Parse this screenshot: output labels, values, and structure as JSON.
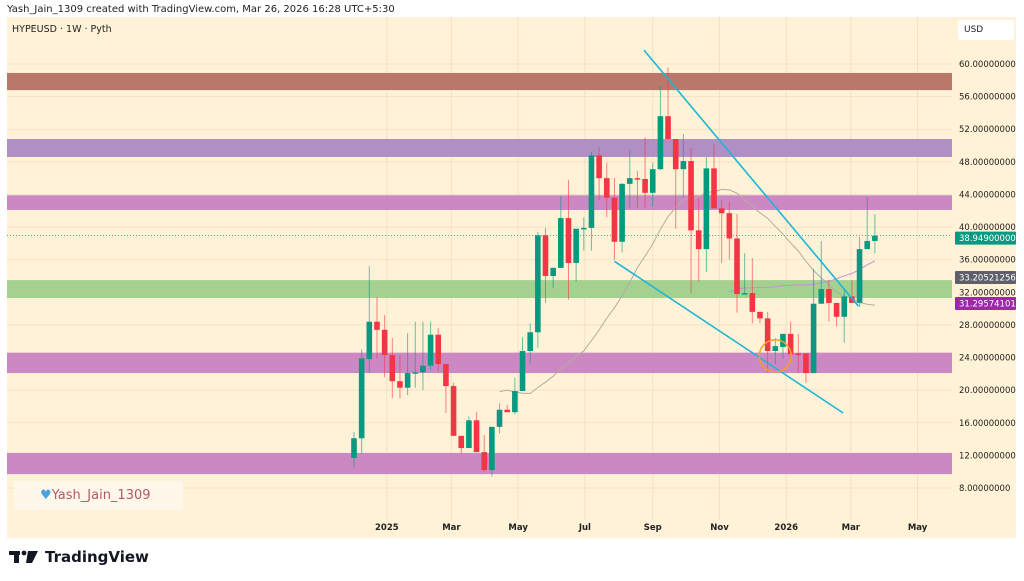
{
  "header": {
    "attribution": "Yash_Jain_1309 created with TradingView.com, Mar 26, 2026 16:28 UTC+5:30"
  },
  "symbol_line": "HYPEUSD · 1W · Pyth",
  "currency": "USD",
  "watermark": "Yash_Jain_1309",
  "brand": "TradingView",
  "colors": {
    "bg": "#fff2d6",
    "up": "#089981",
    "down": "#f23645",
    "trendline": "#1fb5d8",
    "sma_fast": "#b8aba0",
    "sma_slow": "#c98fd6",
    "circle": "#f5a11f"
  },
  "chart_data": {
    "type": "candlestick",
    "timeframe": "1W",
    "ylim": [
      7,
      62
    ],
    "y_ticks": [
      8,
      12,
      16,
      20,
      24,
      28,
      32,
      36,
      40,
      44,
      48,
      52,
      56,
      60
    ],
    "y_tick_labels": [
      "8.00000000",
      "12.00000000",
      "16.00000000",
      "20.00000000",
      "24.00000000",
      "28.00000000",
      "32.00000000",
      "36.00000000",
      "40.00000000",
      "44.00000000",
      "48.00000000",
      "52.00000000",
      "56.00000000",
      "60.00000000"
    ],
    "x_ticks": [
      {
        "label": "2025",
        "date": "2025-01-01"
      },
      {
        "label": "Mar",
        "date": "2025-03-01"
      },
      {
        "label": "May",
        "date": "2025-05-01"
      },
      {
        "label": "Jul",
        "date": "2025-07-01"
      },
      {
        "label": "Sep",
        "date": "2025-09-01"
      },
      {
        "label": "Nov",
        "date": "2025-11-01"
      },
      {
        "label": "2026",
        "date": "2026-01-01"
      },
      {
        "label": "Mar",
        "date": "2026-03-01"
      },
      {
        "label": "May",
        "date": "2026-05-01"
      }
    ],
    "x_range": [
      "2024-08-05",
      "2026-06-15"
    ],
    "candles_columns": [
      "date",
      "open",
      "high",
      "low",
      "close"
    ],
    "candles": [
      [
        "2024-12-02",
        11.7,
        14.9,
        10.5,
        14.1
      ],
      [
        "2024-12-09",
        14.1,
        25.0,
        12.2,
        23.9
      ],
      [
        "2024-12-16",
        23.8,
        35.2,
        22.1,
        28.4
      ],
      [
        "2024-12-23",
        28.4,
        31.4,
        23.9,
        27.4
      ],
      [
        "2024-12-30",
        27.4,
        29.2,
        21.6,
        24.3
      ],
      [
        "2025-01-06",
        24.3,
        26.4,
        19.0,
        21.1
      ],
      [
        "2025-01-13",
        21.1,
        24.3,
        19.0,
        20.3
      ],
      [
        "2025-01-20",
        20.3,
        27.0,
        19.4,
        22.1
      ],
      [
        "2025-01-27",
        22.1,
        28.4,
        20.3,
        22.2
      ],
      [
        "2025-02-03",
        22.2,
        28.4,
        20.0,
        23.0
      ],
      [
        "2025-02-10",
        23.0,
        28.4,
        22.5,
        26.8
      ],
      [
        "2025-02-17",
        26.8,
        27.6,
        22.3,
        23.2
      ],
      [
        "2025-02-24",
        23.2,
        23.2,
        17.2,
        20.5
      ],
      [
        "2025-03-03",
        20.5,
        20.9,
        14.4,
        14.4
      ],
      [
        "2025-03-10",
        14.4,
        14.4,
        12.2,
        12.9
      ],
      [
        "2025-03-17",
        12.9,
        16.8,
        12.9,
        16.3
      ],
      [
        "2025-03-24",
        16.3,
        17.3,
        12.4,
        12.4
      ],
      [
        "2025-03-31",
        12.4,
        14.5,
        10.0,
        10.2
      ],
      [
        "2025-04-07",
        10.2,
        15.5,
        9.4,
        15.5
      ],
      [
        "2025-04-14",
        15.5,
        18.4,
        14.7,
        17.6
      ],
      [
        "2025-04-21",
        17.6,
        18.2,
        17.3,
        17.3
      ],
      [
        "2025-04-28",
        17.3,
        21.5,
        17.0,
        19.9
      ],
      [
        "2025-05-05",
        19.9,
        26.5,
        19.9,
        24.8
      ],
      [
        "2025-05-12",
        24.8,
        28.2,
        23.3,
        27.1
      ],
      [
        "2025-05-19",
        27.1,
        39.4,
        25.2,
        39.0
      ],
      [
        "2025-05-26",
        39.0,
        39.9,
        30.7,
        34.0
      ],
      [
        "2025-06-02",
        34.0,
        35.0,
        32.5,
        35.0
      ],
      [
        "2025-06-09",
        35.0,
        43.8,
        35.0,
        41.1
      ],
      [
        "2025-06-16",
        41.1,
        45.8,
        31.1,
        35.6
      ],
      [
        "2025-06-23",
        35.6,
        39.8,
        33.3,
        39.8
      ],
      [
        "2025-06-30",
        39.8,
        41.2,
        37.1,
        39.9
      ],
      [
        "2025-07-07",
        39.9,
        49.2,
        37.1,
        48.8
      ],
      [
        "2025-07-14",
        48.8,
        49.8,
        43.3,
        46.0
      ],
      [
        "2025-07-21",
        46.0,
        47.9,
        41.2,
        43.6
      ],
      [
        "2025-07-28",
        43.6,
        46.0,
        36.0,
        38.2
      ],
      [
        "2025-08-04",
        38.2,
        45.4,
        36.9,
        45.3
      ],
      [
        "2025-08-11",
        45.3,
        49.4,
        42.3,
        46.0
      ],
      [
        "2025-08-18",
        46.0,
        46.9,
        42.3,
        45.9
      ],
      [
        "2025-08-25",
        45.9,
        51.0,
        42.3,
        44.2
      ],
      [
        "2025-09-01",
        44.2,
        47.9,
        42.5,
        47.1
      ],
      [
        "2025-09-08",
        47.1,
        57.3,
        47.0,
        53.6
      ],
      [
        "2025-09-15",
        53.6,
        59.6,
        50.8,
        50.8
      ],
      [
        "2025-09-22",
        50.8,
        50.8,
        39.8,
        47.1
      ],
      [
        "2025-09-29",
        47.1,
        51.4,
        43.6,
        48.1
      ],
      [
        "2025-10-06",
        48.1,
        49.7,
        31.9,
        39.6
      ],
      [
        "2025-10-13",
        39.6,
        43.6,
        33.3,
        37.3
      ],
      [
        "2025-10-20",
        37.3,
        48.6,
        34.5,
        47.2
      ],
      [
        "2025-10-27",
        47.2,
        50.1,
        42.3,
        42.3
      ],
      [
        "2025-11-03",
        42.3,
        43.3,
        35.6,
        41.7
      ],
      [
        "2025-11-10",
        41.7,
        43.1,
        36.0,
        38.6
      ],
      [
        "2025-11-17",
        38.6,
        41.6,
        29.5,
        31.8
      ],
      [
        "2025-11-24",
        31.8,
        36.8,
        31.8,
        31.9
      ],
      [
        "2025-12-01",
        31.9,
        36.2,
        28.2,
        29.6
      ],
      [
        "2025-12-08",
        29.6,
        29.6,
        28.2,
        28.8
      ],
      [
        "2025-12-15",
        28.8,
        29.6,
        22.2,
        24.8
      ],
      [
        "2025-12-22",
        24.8,
        26.4,
        23.2,
        25.4
      ],
      [
        "2025-12-29",
        25.3,
        26.9,
        23.9,
        26.9
      ],
      [
        "2026-01-05",
        26.9,
        28.4,
        23.9,
        24.4
      ],
      [
        "2026-01-12",
        24.5,
        26.9,
        22.1,
        24.4
      ],
      [
        "2026-01-19",
        24.5,
        24.5,
        20.9,
        22.1
      ],
      [
        "2026-01-26",
        22.1,
        34.9,
        22.1,
        30.6
      ],
      [
        "2026-02-02",
        30.6,
        38.3,
        30.6,
        32.4
      ],
      [
        "2026-02-09",
        32.4,
        33.5,
        28.4,
        30.7
      ],
      [
        "2026-02-16",
        30.7,
        30.7,
        27.8,
        29.0
      ],
      [
        "2026-02-23",
        29.0,
        32.3,
        25.8,
        31.5
      ],
      [
        "2026-03-02",
        31.5,
        33.5,
        30.7,
        30.7
      ],
      [
        "2026-03-09",
        30.7,
        38.8,
        30.2,
        37.3
      ],
      [
        "2026-03-16",
        37.3,
        43.7,
        37.3,
        38.3
      ],
      [
        "2026-03-23",
        38.3,
        41.6,
        36.8,
        38.949
      ]
    ],
    "zones": [
      {
        "from": 56.8,
        "to": 58.9,
        "color": "#b9786a"
      },
      {
        "from": 48.6,
        "to": 50.8,
        "color": "#b08fc5"
      },
      {
        "from": 42.1,
        "to": 43.9,
        "color": "#cc88c3"
      },
      {
        "from": 31.3,
        "to": 33.5,
        "color": "#a4d190"
      },
      {
        "from": 22.1,
        "to": 24.6,
        "color": "#cc88c3"
      },
      {
        "from": 9.7,
        "to": 12.3,
        "color": "#cc88c3"
      }
    ],
    "trendlines": [
      {
        "from": [
          "2025-08-24",
          61.7
        ],
        "to": [
          "2026-03-08",
          30.3
        ]
      },
      {
        "from": [
          "2025-07-28",
          35.8
        ],
        "to": [
          "2026-02-22",
          17.2
        ]
      }
    ],
    "moving_averages": [
      {
        "length": 20,
        "last_label": "33.20521256",
        "color": "#5d606b"
      },
      {
        "length": 50,
        "last_label": "31.29574101",
        "color": "#9c27b0"
      }
    ],
    "last_price": {
      "value": 38.949,
      "label": "38.94900000",
      "color": "#089981"
    },
    "highlight_circle": {
      "date": "2025-12-22",
      "value": 24.2
    }
  }
}
